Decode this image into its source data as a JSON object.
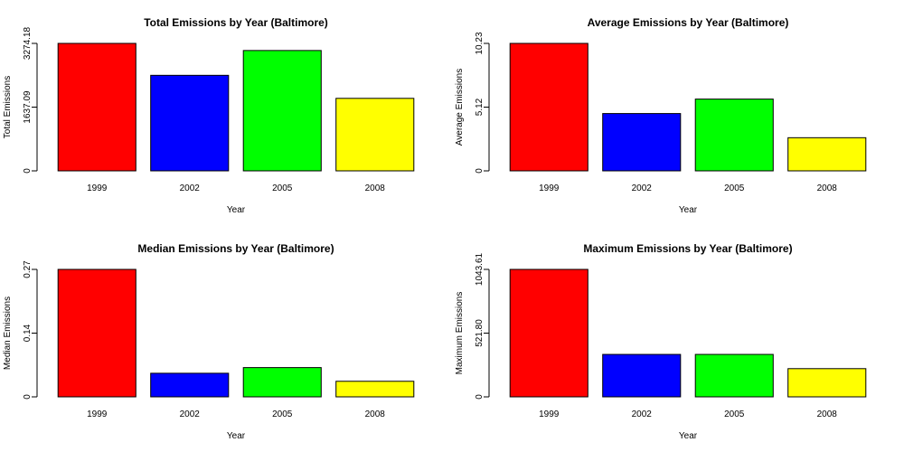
{
  "chart_data": [
    {
      "type": "bar",
      "title": "Total Emissions by Year (Baltimore)",
      "xlabel": "Year",
      "ylabel": "Total Emissions",
      "categories": [
        "1999",
        "2002",
        "2005",
        "2008"
      ],
      "values": [
        3274.18,
        2453.92,
        3091.35,
        1862.28
      ],
      "ylim": [
        0,
        3274.18
      ],
      "yticks": [
        "0",
        "1637.09",
        "3274.18"
      ],
      "colors": [
        "#ff0000",
        "#0000ff",
        "#00ff00",
        "#ffff00"
      ]
    },
    {
      "type": "bar",
      "title": "Average Emissions by Year (Baltimore)",
      "xlabel": "Year",
      "ylabel": "Average Emissions",
      "categories": [
        "1999",
        "2002",
        "2005",
        "2008"
      ],
      "values": [
        10.23,
        4.6,
        5.76,
        2.66
      ],
      "ylim": [
        0,
        10.23
      ],
      "yticks": [
        "0",
        "5.12",
        "10.23"
      ],
      "colors": [
        "#ff0000",
        "#0000ff",
        "#00ff00",
        "#ffff00"
      ]
    },
    {
      "type": "bar",
      "title": "Median Emissions by Year (Baltimore)",
      "xlabel": "Year",
      "ylabel": "Median Emissions",
      "categories": [
        "1999",
        "2002",
        "2005",
        "2008"
      ],
      "values": [
        0.27,
        0.05,
        0.062,
        0.033
      ],
      "ylim": [
        0,
        0.27
      ],
      "yticks": [
        "0",
        "0.14",
        "0.27"
      ],
      "colors": [
        "#ff0000",
        "#0000ff",
        "#00ff00",
        "#ffff00"
      ]
    },
    {
      "type": "bar",
      "title": "Maximum Emissions by Year (Baltimore)",
      "xlabel": "Year",
      "ylabel": "Maximum Emissions",
      "categories": [
        "1999",
        "2002",
        "2005",
        "2008"
      ],
      "values": [
        1043.61,
        347.5,
        347.5,
        231.0
      ],
      "ylim": [
        0,
        1043.61
      ],
      "yticks": [
        "0",
        "521.80",
        "1043.61"
      ],
      "colors": [
        "#ff0000",
        "#0000ff",
        "#00ff00",
        "#ffff00"
      ]
    }
  ]
}
